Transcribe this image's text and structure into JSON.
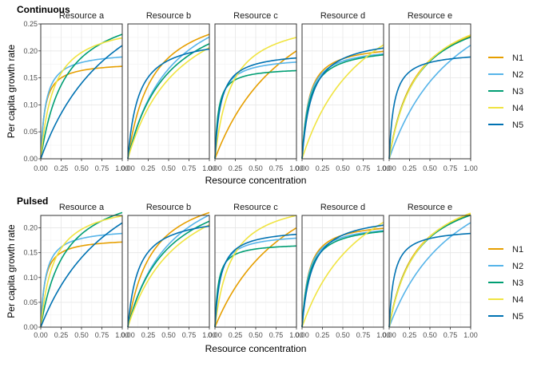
{
  "chart_data": [
    {
      "type": "line",
      "title": "Continuous",
      "xlabel": "Resource concentration",
      "ylabel": "Per capita growth rate",
      "xlim": [
        0,
        1
      ],
      "ylim": [
        0,
        0.25
      ],
      "xticks": [
        "0.00",
        "0.25",
        "0.50",
        "0.75",
        "1.00"
      ],
      "yticks": [
        "0.00",
        "0.05",
        "0.10",
        "0.15",
        "0.20",
        "0.25"
      ],
      "panels": [
        "Resource a",
        "Resource b",
        "Resource c",
        "Resource d",
        "Resource e"
      ],
      "legend_position": "right",
      "series": [
        {
          "name": "N1",
          "color": "#E69F00",
          "curves": [
            {
              "vmax": 0.18,
              "k": 0.05
            },
            {
              "vmax": 0.3,
              "k": 0.3
            },
            {
              "vmax": 0.4,
              "k": 1.0
            },
            {
              "vmax": 0.215,
              "k": 0.08
            },
            {
              "vmax": 0.3,
              "k": 0.32
            }
          ]
        },
        {
          "name": "N2",
          "color": "#56B4E9",
          "curves": [
            {
              "vmax": 0.2,
              "k": 0.06
            },
            {
              "vmax": 0.35,
              "k": 0.55
            },
            {
              "vmax": 0.19,
              "k": 0.06
            },
            {
              "vmax": 0.21,
              "k": 0.08
            },
            {
              "vmax": 0.4,
              "k": 0.9
            }
          ]
        },
        {
          "name": "N3",
          "color": "#009E73",
          "curves": [
            {
              "vmax": 0.3,
              "k": 0.3
            },
            {
              "vmax": 0.32,
              "k": 0.5
            },
            {
              "vmax": 0.17,
              "k": 0.04
            },
            {
              "vmax": 0.21,
              "k": 0.09
            },
            {
              "vmax": 0.3,
              "k": 0.33
            }
          ]
        },
        {
          "name": "N4",
          "color": "#F0E442",
          "curves": [
            {
              "vmax": 0.26,
              "k": 0.16
            },
            {
              "vmax": 0.34,
              "k": 0.65
            },
            {
              "vmax": 0.27,
              "k": 0.2
            },
            {
              "vmax": 0.38,
              "k": 0.8
            },
            {
              "vmax": 0.31,
              "k": 0.35
            }
          ]
        },
        {
          "name": "N5",
          "color": "#0072B2",
          "curves": [
            {
              "vmax": 0.42,
              "k": 1.0
            },
            {
              "vmax": 0.23,
              "k": 0.13
            },
            {
              "vmax": 0.2,
              "k": 0.07
            },
            {
              "vmax": 0.23,
              "k": 0.12
            },
            {
              "vmax": 0.2,
              "k": 0.06
            }
          ]
        }
      ]
    },
    {
      "type": "line",
      "title": "Pulsed",
      "xlabel": "Resource concentration",
      "ylabel": "Per capita growth rate",
      "xlim": [
        0,
        1
      ],
      "ylim": [
        0,
        0.225
      ],
      "xticks": [
        "0.00",
        "0.25",
        "0.50",
        "0.75",
        "1.00"
      ],
      "yticks": [
        "0.00",
        "0.05",
        "0.10",
        "0.15",
        "0.20"
      ],
      "panels": [
        "Resource a",
        "Resource b",
        "Resource c",
        "Resource d",
        "Resource e"
      ],
      "legend_position": "right",
      "series": [
        {
          "name": "N1",
          "color": "#E69F00",
          "curves": [
            {
              "vmax": 0.18,
              "k": 0.05
            },
            {
              "vmax": 0.3,
              "k": 0.3
            },
            {
              "vmax": 0.4,
              "k": 1.0
            },
            {
              "vmax": 0.215,
              "k": 0.08
            },
            {
              "vmax": 0.3,
              "k": 0.32
            }
          ]
        },
        {
          "name": "N2",
          "color": "#56B4E9",
          "curves": [
            {
              "vmax": 0.2,
              "k": 0.06
            },
            {
              "vmax": 0.35,
              "k": 0.55
            },
            {
              "vmax": 0.19,
              "k": 0.06
            },
            {
              "vmax": 0.21,
              "k": 0.08
            },
            {
              "vmax": 0.4,
              "k": 0.9
            }
          ]
        },
        {
          "name": "N3",
          "color": "#009E73",
          "curves": [
            {
              "vmax": 0.3,
              "k": 0.3
            },
            {
              "vmax": 0.32,
              "k": 0.5
            },
            {
              "vmax": 0.17,
              "k": 0.04
            },
            {
              "vmax": 0.21,
              "k": 0.09
            },
            {
              "vmax": 0.3,
              "k": 0.33
            }
          ]
        },
        {
          "name": "N4",
          "color": "#F0E442",
          "curves": [
            {
              "vmax": 0.26,
              "k": 0.16
            },
            {
              "vmax": 0.34,
              "k": 0.65
            },
            {
              "vmax": 0.27,
              "k": 0.2
            },
            {
              "vmax": 0.38,
              "k": 0.8
            },
            {
              "vmax": 0.31,
              "k": 0.35
            }
          ]
        },
        {
          "name": "N5",
          "color": "#0072B2",
          "curves": [
            {
              "vmax": 0.42,
              "k": 1.0
            },
            {
              "vmax": 0.23,
              "k": 0.13
            },
            {
              "vmax": 0.2,
              "k": 0.07
            },
            {
              "vmax": 0.23,
              "k": 0.12
            },
            {
              "vmax": 0.2,
              "k": 0.06
            }
          ]
        }
      ]
    }
  ]
}
